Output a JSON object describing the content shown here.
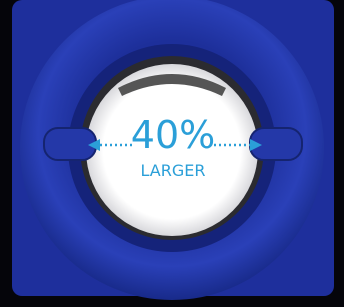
{
  "annotation": {
    "value": "40%",
    "caption": "LARGER"
  }
}
